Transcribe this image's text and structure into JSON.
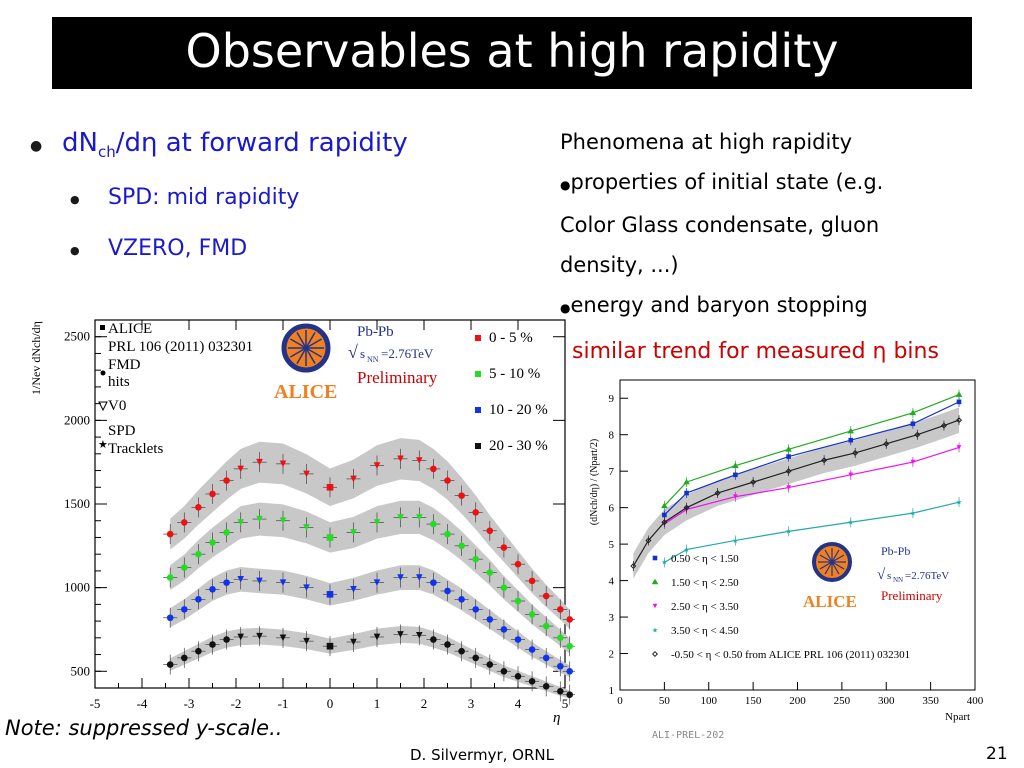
{
  "slide": {
    "title": "Observables at high rapidity",
    "bullets": {
      "b1_pre": "dN",
      "b1_sub": "ch",
      "b1_post": "/dη at forward rapidity",
      "b2": "SPD: mid rapidity",
      "b3": "VZERO, FMD"
    },
    "right": {
      "heading": "Phenomena at high rapidity",
      "line1": "properties of initial state (e.g.",
      "line2": "Color Glass condensate, gluon",
      "line3": "density, ...)",
      "line4": "energy and baryon stopping"
    },
    "trend_text": "similar trend for measured η bins",
    "note": "Note: suppressed y-scale..",
    "author": "D. Silvermyr, ORNL",
    "page_number": "21",
    "prelim_tag": "ALI-PREL-202"
  },
  "chart_data": [
    {
      "type": "scatter",
      "ylabel": "1/Nev dNch/dη",
      "xlabel": "η",
      "xlim": [
        -5,
        5
      ],
      "ylim": [
        400,
        2600
      ],
      "x_ticks": [
        "-5",
        "-4",
        "-3",
        "-2",
        "-1",
        "0",
        "1",
        "2",
        "3",
        "4",
        "5"
      ],
      "y_ticks": [
        "500",
        "1000",
        "1500",
        "2000",
        "2500"
      ],
      "legend_left": {
        "l1": "ALICE",
        "l2": "PRL 106 (2011) 032301",
        "l3": "FMD",
        "l4": "hits",
        "l5": "V0",
        "l6": "SPD",
        "l7": "Tracklets"
      },
      "logo": {
        "system": "Pb-Pb",
        "energy": "=2.76TeV",
        "energy_label": "s",
        "energy_sub": "NN",
        "prelim": "Preliminary",
        "name": "ALICE"
      },
      "series": [
        {
          "name": "0 - 5 %",
          "color": "#ee1111",
          "x": [
            -3.4,
            -3.1,
            -2.8,
            -2.5,
            -2.2,
            -1.9,
            -1.5,
            -1.0,
            -0.5,
            0.0,
            0.5,
            1.0,
            1.5,
            1.9,
            2.2,
            2.5,
            2.8,
            3.1,
            3.4,
            3.7,
            4.0,
            4.3,
            4.6,
            4.9,
            5.1
          ],
          "y": [
            1320,
            1390,
            1480,
            1560,
            1640,
            1710,
            1750,
            1740,
            1680,
            1600,
            1650,
            1730,
            1770,
            1760,
            1710,
            1640,
            1550,
            1450,
            1340,
            1240,
            1140,
            1040,
            950,
            870,
            810
          ]
        },
        {
          "name": "5 - 10 %",
          "color": "#22dd22",
          "x": [
            -3.4,
            -3.1,
            -2.8,
            -2.5,
            -2.2,
            -1.9,
            -1.5,
            -1.0,
            -0.5,
            0.0,
            0.5,
            1.0,
            1.5,
            1.9,
            2.2,
            2.5,
            2.8,
            3.1,
            3.4,
            3.7,
            4.0,
            4.3,
            4.6,
            4.9,
            5.1
          ],
          "y": [
            1060,
            1120,
            1200,
            1270,
            1330,
            1390,
            1410,
            1400,
            1360,
            1300,
            1330,
            1390,
            1420,
            1420,
            1380,
            1320,
            1250,
            1170,
            1090,
            1000,
            920,
            840,
            770,
            700,
            650
          ]
        },
        {
          "name": "10 - 20 %",
          "color": "#1133ee",
          "x": [
            -3.4,
            -3.1,
            -2.8,
            -2.5,
            -2.2,
            -1.9,
            -1.5,
            -1.0,
            -0.5,
            0.0,
            0.5,
            1.0,
            1.5,
            1.9,
            2.2,
            2.5,
            2.8,
            3.1,
            3.4,
            3.7,
            4.0,
            4.3,
            4.6,
            4.9,
            5.1
          ],
          "y": [
            820,
            870,
            930,
            990,
            1030,
            1050,
            1040,
            1030,
            1000,
            960,
            990,
            1030,
            1060,
            1060,
            1030,
            980,
            930,
            870,
            810,
            750,
            690,
            630,
            580,
            530,
            500
          ]
        },
        {
          "name": "20 - 30 %",
          "color": "#111111",
          "x": [
            -3.4,
            -3.1,
            -2.8,
            -2.5,
            -2.2,
            -1.9,
            -1.5,
            -1.0,
            -0.5,
            0.0,
            0.5,
            1.0,
            1.5,
            1.9,
            2.2,
            2.5,
            2.8,
            3.1,
            3.4,
            3.7,
            4.0,
            4.3,
            4.6,
            4.9,
            5.1
          ],
          "y": [
            540,
            580,
            620,
            660,
            690,
            705,
            710,
            700,
            680,
            650,
            675,
            705,
            720,
            715,
            690,
            660,
            620,
            580,
            540,
            500,
            470,
            440,
            410,
            380,
            360
          ]
        }
      ]
    },
    {
      "type": "line",
      "ylabel": "(dNch/dη) / (Npart/2)",
      "xlabel": "Npart",
      "xlim": [
        0,
        400
      ],
      "ylim": [
        1,
        9.5
      ],
      "x_ticks": [
        "0",
        "50",
        "100",
        "150",
        "200",
        "250",
        "300",
        "350",
        "400"
      ],
      "y_ticks": [
        "1",
        "2",
        "3",
        "4",
        "5",
        "6",
        "7",
        "8",
        "9"
      ],
      "logo": {
        "system": "Pb-Pb",
        "energy": "=2.76TeV",
        "energy_label": "s",
        "energy_sub": "NN",
        "prelim": "Preliminary",
        "name": "ALICE"
      },
      "series": [
        {
          "name": "0.50 < η < 1.50",
          "color": "#1133cc",
          "x": [
            50,
            75,
            130,
            190,
            260,
            330,
            382
          ],
          "y": [
            5.8,
            6.4,
            6.9,
            7.4,
            7.85,
            8.3,
            8.9
          ]
        },
        {
          "name": "1.50 < η < 2.50",
          "color": "#22aa22",
          "x": [
            50,
            75,
            130,
            190,
            260,
            330,
            382
          ],
          "y": [
            6.05,
            6.7,
            7.15,
            7.6,
            8.1,
            8.6,
            9.1
          ]
        },
        {
          "name": "2.50 < η < 3.50",
          "color": "#ee11ee",
          "x": [
            50,
            75,
            130,
            190,
            260,
            330,
            382
          ],
          "y": [
            5.55,
            5.95,
            6.3,
            6.55,
            6.9,
            7.25,
            7.65
          ]
        },
        {
          "name": "3.50 < η < 4.50",
          "color": "#22aaaa",
          "x": [
            50,
            75,
            130,
            190,
            260,
            330,
            382
          ],
          "y": [
            4.5,
            4.85,
            5.1,
            5.35,
            5.6,
            5.85,
            6.15
          ]
        },
        {
          "name": "-0.50 < η < 0.50 from ALICE PRL 106 (2011) 032301",
          "color": "#222222",
          "x": [
            15,
            32,
            50,
            75,
            110,
            150,
            190,
            230,
            265,
            300,
            335,
            365,
            382
          ],
          "y": [
            4.4,
            5.1,
            5.6,
            6.0,
            6.4,
            6.7,
            7.0,
            7.3,
            7.5,
            7.75,
            8.0,
            8.25,
            8.4
          ]
        }
      ]
    }
  ]
}
